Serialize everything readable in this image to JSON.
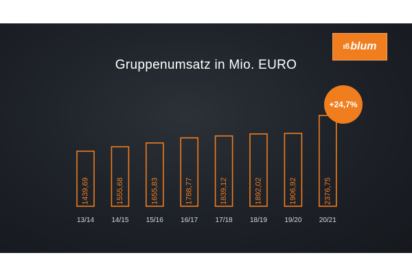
{
  "brand": {
    "logo_text": "blum",
    "logo_mark": "ıß",
    "accent_color": "#f07d1e"
  },
  "badge": {
    "text": "+24,7%"
  },
  "chart_data": {
    "type": "bar",
    "title": "Gruppenumsatz in Mio. EURO",
    "categories": [
      "13/14",
      "14/15",
      "15/16",
      "16/17",
      "17/18",
      "18/19",
      "19/20",
      "20/21"
    ],
    "values": [
      1439.69,
      1555.68,
      1655.83,
      1788.77,
      1839.12,
      1892.02,
      1906.92,
      2376.75
    ],
    "value_labels": [
      "1439,69",
      "1555,68",
      "1655,83",
      "1788,77",
      "1839,12",
      "1892,02",
      "1906,92",
      "2376,75"
    ],
    "xlabel": "",
    "ylabel": "",
    "bar_style": "outline",
    "bar_color": "#f07d1e",
    "grid": false
  }
}
